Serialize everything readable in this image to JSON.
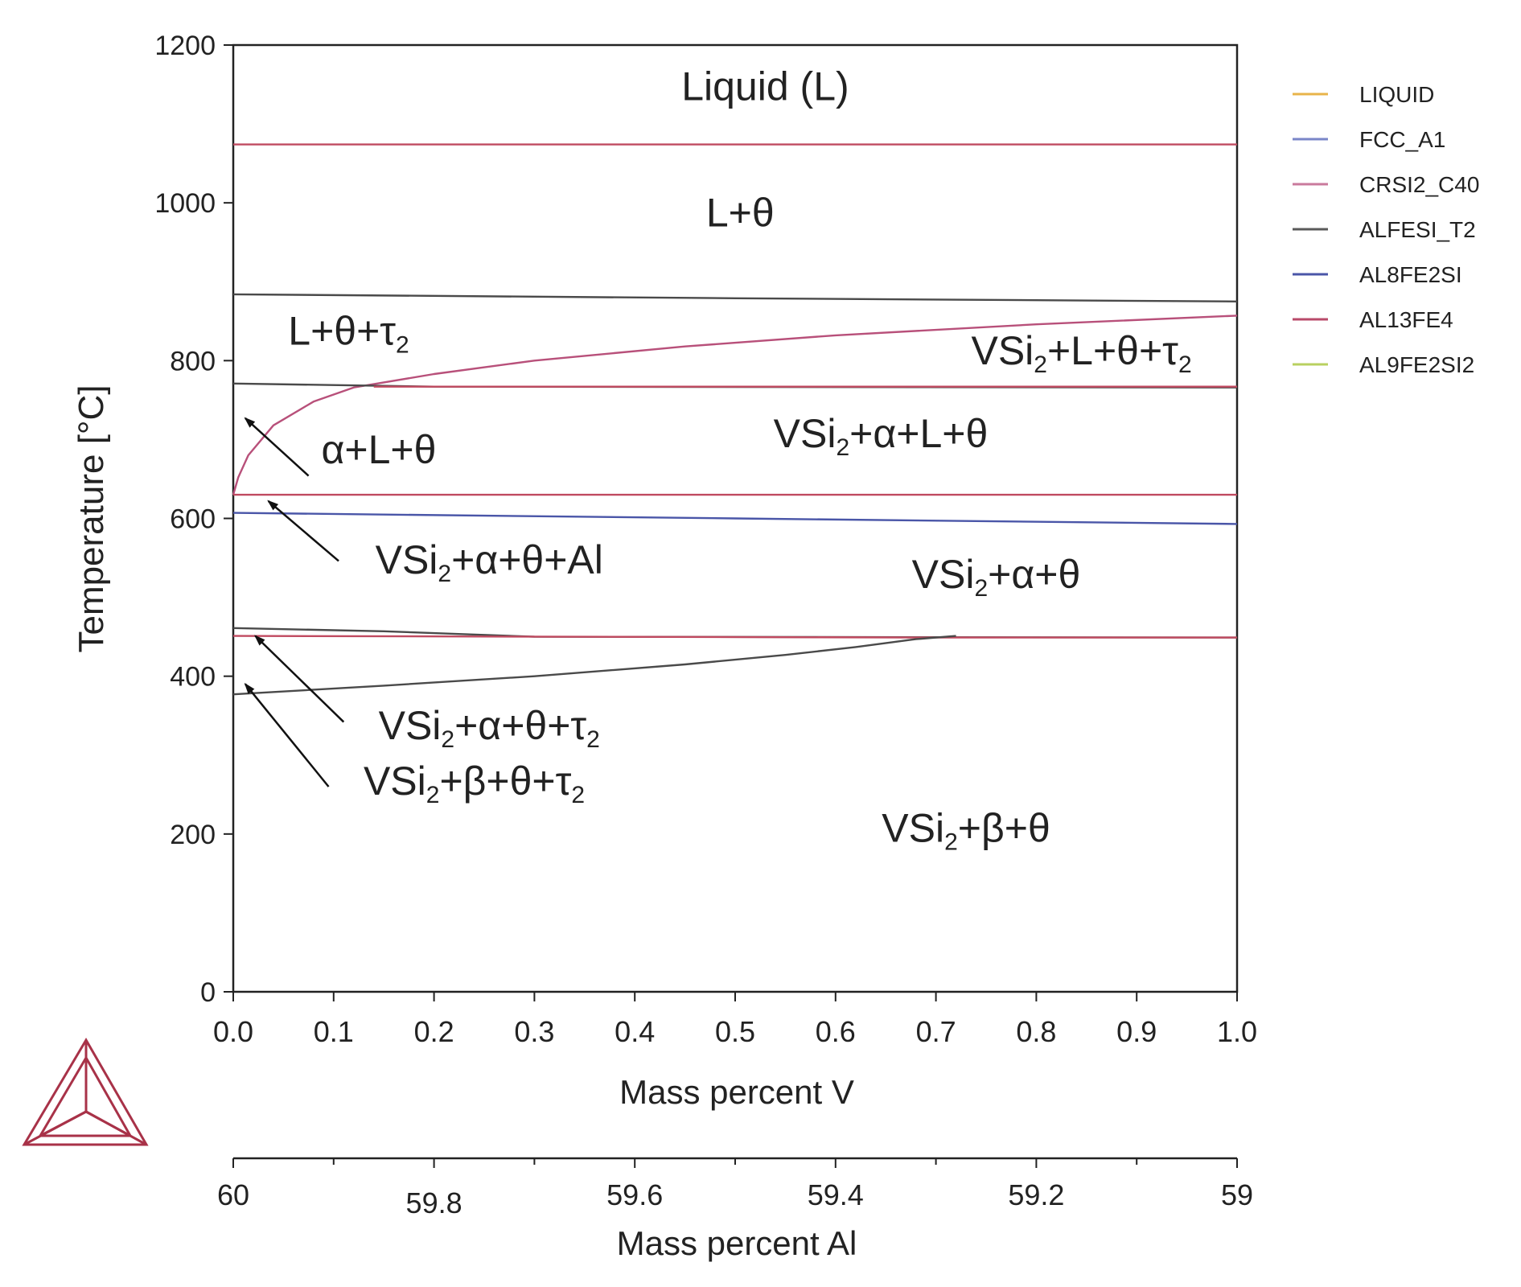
{
  "chart_data": {
    "type": "line",
    "title": "",
    "xlabel": "Mass percent V",
    "ylabel": "Temperature [°C]",
    "x2label": "Mass percent Al",
    "xlim": [
      0.0,
      1.0
    ],
    "ylim": [
      0,
      1200
    ],
    "x2lim": [
      60,
      59
    ],
    "x_ticks": [
      "0.0",
      "0.1",
      "0.2",
      "0.3",
      "0.4",
      "0.5",
      "0.6",
      "0.7",
      "0.8",
      "0.9",
      "1.0"
    ],
    "y_ticks": [
      "0",
      "200",
      "400",
      "600",
      "800",
      "1000",
      "1200"
    ],
    "x2_ticks": [
      {
        "value": 60,
        "label": "60"
      },
      {
        "value": 59.8,
        "label": "59.8"
      },
      {
        "value": 59.6,
        "label": "59.6"
      },
      {
        "value": 59.4,
        "label": "59.4"
      },
      {
        "value": 59.2,
        "label": "59.2"
      },
      {
        "value": 59,
        "label": "59"
      }
    ],
    "x2_minor": [
      59.9,
      59.7,
      59.5,
      59.3,
      59.1
    ],
    "legend_position": "right",
    "legend": [
      {
        "name": "LIQUID",
        "color": "#e8b44a"
      },
      {
        "name": "FCC_A1",
        "color": "#7a86c8"
      },
      {
        "name": "CRSI2_C40",
        "color": "#c97a9c"
      },
      {
        "name": "ALFESI_T2",
        "color": "#5a5a5a"
      },
      {
        "name": "AL8FE2SI",
        "color": "#4a56a8"
      },
      {
        "name": "AL13FE4",
        "color": "#b84a6a"
      },
      {
        "name": "AL9FE2SI2",
        "color": "#b8d060"
      }
    ],
    "series": [
      {
        "name": "AL13FE4",
        "color": "#c04a60",
        "points": [
          [
            0,
            1074
          ],
          [
            1,
            1074
          ]
        ]
      },
      {
        "name": "ALFESI_T2",
        "color": "#4a4a4a",
        "points": [
          [
            0,
            884
          ],
          [
            0.5,
            879
          ],
          [
            1,
            875
          ]
        ]
      },
      {
        "name": "CRSI2_C40",
        "color": "#b8507a",
        "points": [
          [
            0,
            630
          ],
          [
            0.005,
            652
          ],
          [
            0.015,
            680
          ],
          [
            0.04,
            718
          ],
          [
            0.08,
            748
          ],
          [
            0.12,
            766
          ],
          [
            0.2,
            783
          ],
          [
            0.3,
            800
          ],
          [
            0.45,
            818
          ],
          [
            0.6,
            832
          ],
          [
            0.8,
            846
          ],
          [
            1,
            857
          ]
        ]
      },
      {
        "name": "ALFESI_T2",
        "color": "#4a4a4a",
        "points": [
          [
            0,
            771
          ],
          [
            0.2,
            767
          ],
          [
            1,
            766
          ]
        ]
      },
      {
        "name": "AL13FE4",
        "color": "#c04a60",
        "points": [
          [
            0.14,
            767
          ],
          [
            1,
            767
          ]
        ]
      },
      {
        "name": "AL13FE4",
        "color": "#c04a60",
        "points": [
          [
            0,
            630
          ],
          [
            1,
            630
          ]
        ]
      },
      {
        "name": "AL8FE2SI",
        "color": "#4a56a8",
        "points": [
          [
            0,
            607
          ],
          [
            0.5,
            600
          ],
          [
            1,
            593
          ]
        ]
      },
      {
        "name": "ALFESI_T2",
        "color": "#4a4a4a",
        "points": [
          [
            0,
            461
          ],
          [
            0.15,
            457
          ],
          [
            0.3,
            450
          ],
          [
            1,
            449
          ]
        ]
      },
      {
        "name": "AL13FE4",
        "color": "#c04a60",
        "points": [
          [
            0,
            451
          ],
          [
            0.7,
            449
          ],
          [
            1,
            449
          ]
        ]
      },
      {
        "name": "ALFESI_T2",
        "color": "#4a4a4a",
        "points": [
          [
            0,
            377
          ],
          [
            0.15,
            388
          ],
          [
            0.3,
            400
          ],
          [
            0.45,
            415
          ],
          [
            0.55,
            427
          ],
          [
            0.62,
            437
          ],
          [
            0.68,
            447
          ],
          [
            0.72,
            451
          ]
        ]
      }
    ],
    "region_labels": [
      {
        "text": "Liquid (L)",
        "x": 0.53,
        "y": 1130
      },
      {
        "text": "L+θ",
        "x": 0.505,
        "y": 970
      },
      {
        "text": "L+θ+τ₂",
        "x": 0.115,
        "y": 820
      },
      {
        "text": "VSi₂+L+θ+τ₂",
        "x": 0.845,
        "y": 795
      },
      {
        "text": "α+L+θ",
        "x": 0.145,
        "y": 670
      },
      {
        "text": "VSi₂+α+L+θ",
        "x": 0.645,
        "y": 690
      },
      {
        "text": "VSi₂+α+θ+Al",
        "x": 0.255,
        "y": 530
      },
      {
        "text": "VSi₂+α+θ",
        "x": 0.76,
        "y": 512
      },
      {
        "text": "VSi₂+α+θ+τ₂",
        "x": 0.255,
        "y": 320
      },
      {
        "text": "VSi₂+β+θ+τ₂",
        "x": 0.24,
        "y": 250
      },
      {
        "text": "VSi₂+β+θ",
        "x": 0.73,
        "y": 190
      }
    ],
    "arrows": [
      {
        "label": "α+L+θ",
        "from": [
          0.075,
          654
        ],
        "to": [
          0.012,
          727
        ]
      },
      {
        "label": "VSi₂+α+θ+Al",
        "from": [
          0.105,
          546
        ],
        "to": [
          0.035,
          622
        ]
      },
      {
        "label": "VSi₂+α+θ+τ₂",
        "from": [
          0.11,
          342
        ],
        "to": [
          0.022,
          451
        ]
      },
      {
        "label": "VSi₂+β+θ+τ₂",
        "from": [
          0.095,
          260
        ],
        "to": [
          0.012,
          390
        ]
      }
    ]
  }
}
